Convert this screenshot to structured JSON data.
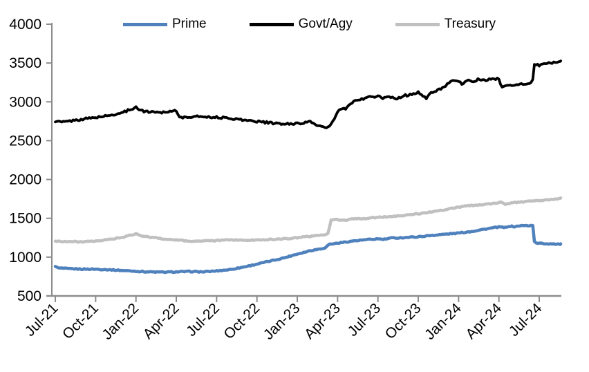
{
  "chart_data": {
    "type": "line",
    "title": "",
    "xlabel": "",
    "ylabel": "",
    "ylim": [
      500,
      4000
    ],
    "y_ticks": [
      500,
      1000,
      1500,
      2000,
      2500,
      3000,
      3500,
      4000
    ],
    "x_tick_labels": [
      "Jul-21",
      "Oct-21",
      "Jan-22",
      "Apr-22",
      "Jul-22",
      "Oct-22",
      "Jan-23",
      "Apr-23",
      "Jul-23",
      "Oct-23",
      "Jan-24",
      "Apr-24",
      "Jul-24"
    ],
    "x_unit": "months since Jul-2021 (fractional = intra-month)",
    "x_range": [
      0,
      37.6
    ],
    "legend_position": "top",
    "grid": false,
    "axis_color": "#8c8c8c",
    "background_color": "#ffffff",
    "series": [
      {
        "name": "Prime",
        "color": "#4f81bd",
        "points": [
          [
            0,
            880
          ],
          [
            0.25,
            860
          ],
          [
            1,
            850
          ],
          [
            2,
            846
          ],
          [
            3,
            845
          ],
          [
            4,
            838
          ],
          [
            5,
            828
          ],
          [
            6,
            818
          ],
          [
            7,
            810
          ],
          [
            8,
            806
          ],
          [
            9,
            810
          ],
          [
            10,
            815
          ],
          [
            11,
            810
          ],
          [
            12,
            822
          ],
          [
            13,
            840
          ],
          [
            14,
            872
          ],
          [
            15,
            910
          ],
          [
            16,
            950
          ],
          [
            17,
            990
          ],
          [
            18,
            1040
          ],
          [
            19,
            1085
          ],
          [
            19.8,
            1110
          ],
          [
            20.1,
            1122
          ],
          [
            20.35,
            1165
          ],
          [
            21,
            1180
          ],
          [
            22,
            1205
          ],
          [
            23,
            1222
          ],
          [
            24,
            1235
          ],
          [
            24.4,
            1228
          ],
          [
            25,
            1245
          ],
          [
            26,
            1252
          ],
          [
            27,
            1262
          ],
          [
            28,
            1280
          ],
          [
            29,
            1295
          ],
          [
            30,
            1310
          ],
          [
            31,
            1332
          ],
          [
            32,
            1362
          ],
          [
            33,
            1388
          ],
          [
            33.5,
            1380
          ],
          [
            33.8,
            1398
          ],
          [
            34.2,
            1392
          ],
          [
            34.6,
            1405
          ],
          [
            35,
            1405
          ],
          [
            35.55,
            1408
          ],
          [
            35.65,
            1180
          ],
          [
            36,
            1178
          ],
          [
            36.6,
            1172
          ],
          [
            37,
            1172
          ],
          [
            37.6,
            1165
          ]
        ]
      },
      {
        "name": "Govt/Agy",
        "color": "#000000",
        "points": [
          [
            0,
            2752
          ],
          [
            0.5,
            2738
          ],
          [
            1,
            2750
          ],
          [
            2,
            2776
          ],
          [
            3,
            2800
          ],
          [
            4,
            2822
          ],
          [
            5,
            2862
          ],
          [
            6,
            2932
          ],
          [
            6.4,
            2884
          ],
          [
            7,
            2872
          ],
          [
            8,
            2866
          ],
          [
            9,
            2890
          ],
          [
            9.3,
            2792
          ],
          [
            10,
            2806
          ],
          [
            11,
            2812
          ],
          [
            12,
            2800
          ],
          [
            13,
            2790
          ],
          [
            14,
            2766
          ],
          [
            15,
            2748
          ],
          [
            16,
            2728
          ],
          [
            17,
            2712
          ],
          [
            18,
            2722
          ],
          [
            19,
            2742
          ],
          [
            19.5,
            2700
          ],
          [
            20,
            2665
          ],
          [
            20.4,
            2682
          ],
          [
            20.7,
            2760
          ],
          [
            21,
            2862
          ],
          [
            21.3,
            2920
          ],
          [
            21.6,
            2900
          ],
          [
            22,
            2990
          ],
          [
            22.4,
            3012
          ],
          [
            23,
            3048
          ],
          [
            23.5,
            3062
          ],
          [
            24,
            3070
          ],
          [
            24.4,
            3046
          ],
          [
            25,
            3062
          ],
          [
            25.4,
            3042
          ],
          [
            26,
            3082
          ],
          [
            26.5,
            3092
          ],
          [
            27,
            3130
          ],
          [
            27.3,
            3080
          ],
          [
            27.6,
            3042
          ],
          [
            28,
            3122
          ],
          [
            28.5,
            3155
          ],
          [
            29,
            3205
          ],
          [
            29.5,
            3262
          ],
          [
            30,
            3270
          ],
          [
            30.3,
            3222
          ],
          [
            30.6,
            3282
          ],
          [
            31,
            3255
          ],
          [
            31.5,
            3292
          ],
          [
            32,
            3272
          ],
          [
            32.5,
            3302
          ],
          [
            33,
            3292
          ],
          [
            33.2,
            3182
          ],
          [
            33.6,
            3212
          ],
          [
            34,
            3216
          ],
          [
            34.5,
            3224
          ],
          [
            35,
            3232
          ],
          [
            35.5,
            3252
          ],
          [
            35.62,
            3478
          ],
          [
            36,
            3470
          ],
          [
            36.5,
            3492
          ],
          [
            37,
            3505
          ],
          [
            37.6,
            3522
          ]
        ]
      },
      {
        "name": "Treasury",
        "color": "#c0c0c0",
        "points": [
          [
            0,
            1205
          ],
          [
            1,
            1200
          ],
          [
            2,
            1197
          ],
          [
            3,
            1203
          ],
          [
            4,
            1228
          ],
          [
            5,
            1255
          ],
          [
            6,
            1300
          ],
          [
            6.4,
            1272
          ],
          [
            7,
            1258
          ],
          [
            8,
            1236
          ],
          [
            9,
            1222
          ],
          [
            10,
            1205
          ],
          [
            11,
            1208
          ],
          [
            12,
            1212
          ],
          [
            13,
            1225
          ],
          [
            14,
            1215
          ],
          [
            15,
            1220
          ],
          [
            16,
            1228
          ],
          [
            17,
            1235
          ],
          [
            18,
            1250
          ],
          [
            19,
            1268
          ],
          [
            20,
            1288
          ],
          [
            20.3,
            1300
          ],
          [
            20.5,
            1472
          ],
          [
            21,
            1485
          ],
          [
            21.4,
            1474
          ],
          [
            22,
            1488
          ],
          [
            23,
            1498
          ],
          [
            24,
            1512
          ],
          [
            25,
            1524
          ],
          [
            26,
            1540
          ],
          [
            27,
            1558
          ],
          [
            28,
            1582
          ],
          [
            29,
            1612
          ],
          [
            30,
            1645
          ],
          [
            30.5,
            1656
          ],
          [
            31,
            1666
          ],
          [
            32,
            1680
          ],
          [
            33,
            1702
          ],
          [
            33.15,
            1714
          ],
          [
            33.5,
            1682
          ],
          [
            34,
            1702
          ],
          [
            35,
            1714
          ],
          [
            36,
            1726
          ],
          [
            37,
            1742
          ],
          [
            37.6,
            1758
          ]
        ]
      }
    ]
  }
}
